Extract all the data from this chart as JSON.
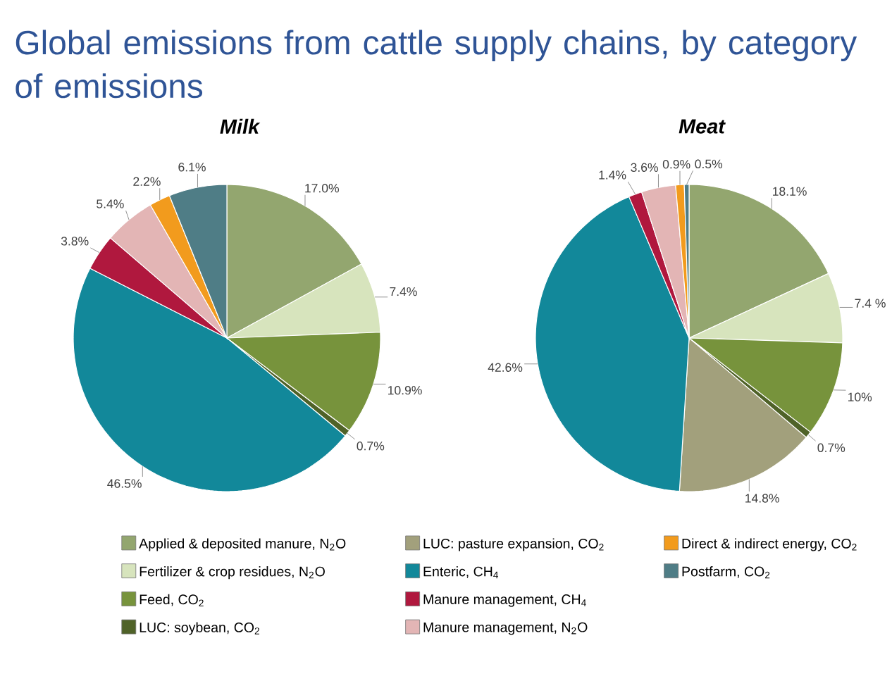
{
  "chart_data": {
    "type": "pie",
    "title": "Global emissions from cattle supply chains, by category of emissions",
    "categories": [
      "Applied & deposited manure, N$_{2}$O",
      "Fertilizer & crop residues, N$_{2}$O",
      "Feed, CO$_{2}$",
      "LUC: soybean, CO$_{2}$",
      "LUC: pasture expansion, CO$_{2}$",
      "Enteric, CH$_{4}$",
      "Manure management, CH$_{4}$",
      "Manure management, N$_{2}$O",
      "Direct & indirect energy, CO$_{2}$",
      "Postfarm, CO$_{2}$"
    ],
    "colors": [
      "#93a66f",
      "#d7e4bd",
      "#77933c",
      "#4f6228",
      "#a2a07c",
      "#12889a",
      "#b0183e",
      "#e3b5b5",
      "#f29b1d",
      "#4f7d86"
    ],
    "series": [
      {
        "name": "Milk",
        "values": [
          17.0,
          7.4,
          10.9,
          0.7,
          null,
          46.5,
          3.8,
          5.4,
          2.2,
          6.1
        ],
        "value_labels": [
          "17.0%",
          "7.4%",
          "10.9%",
          "0.7%",
          null,
          "46.5%",
          "3.8%",
          "5.4%",
          "2.2%",
          "6.1%"
        ]
      },
      {
        "name": "Meat",
        "values": [
          18.1,
          7.4,
          10,
          0.7,
          14.8,
          42.6,
          1.4,
          3.6,
          0.9,
          0.5
        ],
        "value_labels": [
          "18.1%",
          "7.4 %",
          "10%",
          "0.7%",
          "14.8%",
          "42.6%",
          "1.4%",
          "3.6%",
          "0.9%",
          "0.5%"
        ]
      }
    ],
    "legend": "bottom"
  }
}
